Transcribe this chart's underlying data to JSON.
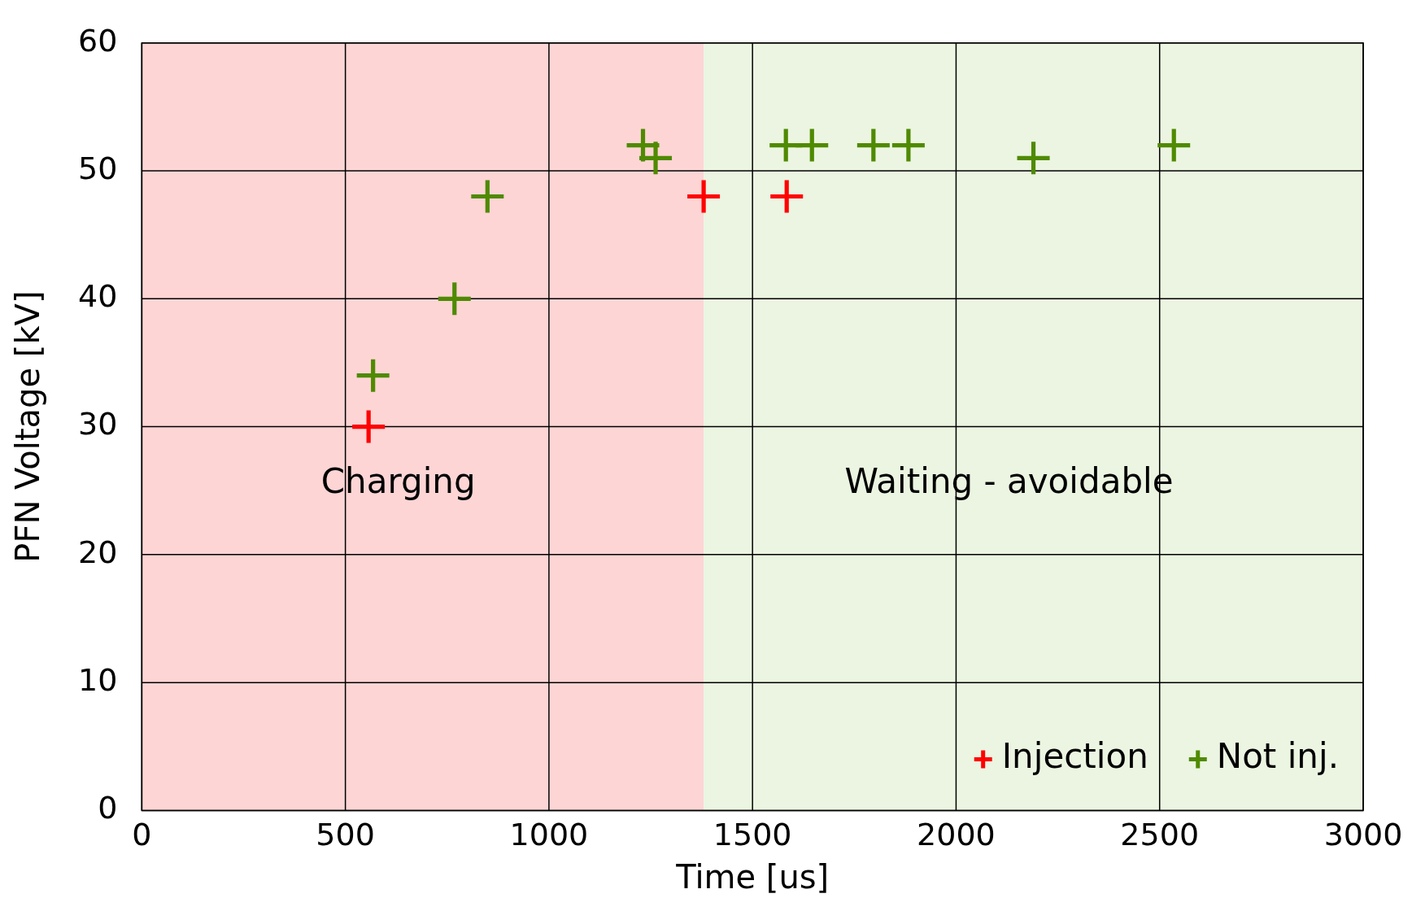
{
  "chart_data": {
    "type": "scatter",
    "xlabel": "Time [us]",
    "ylabel": "PFN Voltage [kV]",
    "xlim": [
      0,
      3000
    ],
    "xticks": [
      0,
      500,
      1000,
      1500,
      2000,
      2500,
      3000
    ],
    "ylim": [
      0,
      60
    ],
    "yticks": [
      0,
      10,
      20,
      30,
      40,
      50,
      60
    ],
    "grid": true,
    "legend": "bottom right",
    "marker": "cross",
    "bands": [
      {
        "axis": "x",
        "from": 0,
        "to": 1380,
        "label": "Charging",
        "color": "#fdd5d5"
      },
      {
        "axis": "x",
        "from": 1380,
        "to": 3000,
        "label": "Waiting - avoidable",
        "color": "#ebf5e1"
      }
    ],
    "series": [
      {
        "name": "Injection",
        "color": "#ff0000",
        "x": [
          557,
          1380,
          1584
        ],
        "values": [
          30,
          48,
          48
        ]
      },
      {
        "name": "Not inj.",
        "color": "#4f8a00",
        "x": [
          568,
          768,
          849,
          1231,
          1262,
          1582,
          1646,
          1797,
          1883,
          2190,
          2535
        ],
        "values": [
          34,
          40,
          48,
          52,
          51,
          52,
          52,
          52,
          52,
          51,
          52
        ]
      }
    ]
  }
}
